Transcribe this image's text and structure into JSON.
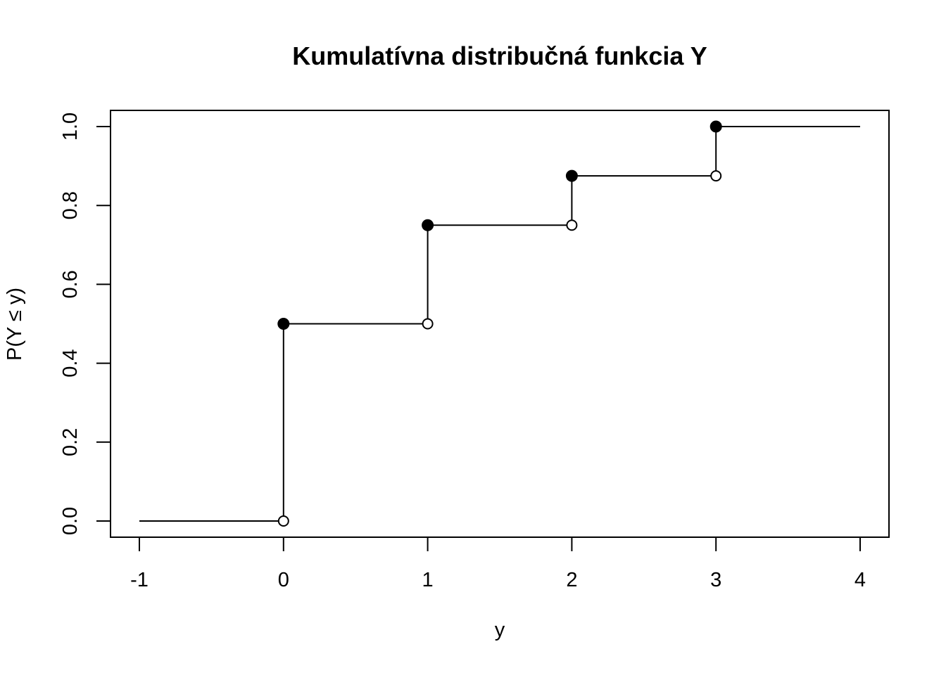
{
  "chart_data": {
    "type": "line",
    "title": "Kumulatívna distribučná funkcia Y",
    "xlabel": "y",
    "ylabel": "P(Y ≤ y)",
    "xlim": [
      -1,
      4
    ],
    "ylim": [
      0,
      1
    ],
    "x_ticks": [
      -1,
      0,
      1,
      2,
      3,
      4
    ],
    "x_tick_labels": [
      "-1",
      "0",
      "1",
      "2",
      "3",
      "4"
    ],
    "y_ticks": [
      0,
      0.2,
      0.4,
      0.6,
      0.8,
      1
    ],
    "y_tick_labels": [
      "0.0",
      "0.2",
      "0.4",
      "0.6",
      "0.8",
      "1.0"
    ],
    "grid": false,
    "line_color": "#000000",
    "steps": [
      {
        "x_start": -1,
        "x_end": 0,
        "y": 0
      },
      {
        "x_start": 0,
        "x_end": 1,
        "y": 0.5
      },
      {
        "x_start": 1,
        "x_end": 2,
        "y": 0.75
      },
      {
        "x_start": 2,
        "x_end": 3,
        "y": 0.875
      },
      {
        "x_start": 3,
        "x_end": 4,
        "y": 1
      }
    ],
    "jumps": [
      {
        "x": 0,
        "from": 0,
        "to": 0.5
      },
      {
        "x": 1,
        "from": 0.5,
        "to": 0.75
      },
      {
        "x": 2,
        "from": 0.75,
        "to": 0.875
      },
      {
        "x": 3,
        "from": 0.875,
        "to": 1
      }
    ]
  }
}
